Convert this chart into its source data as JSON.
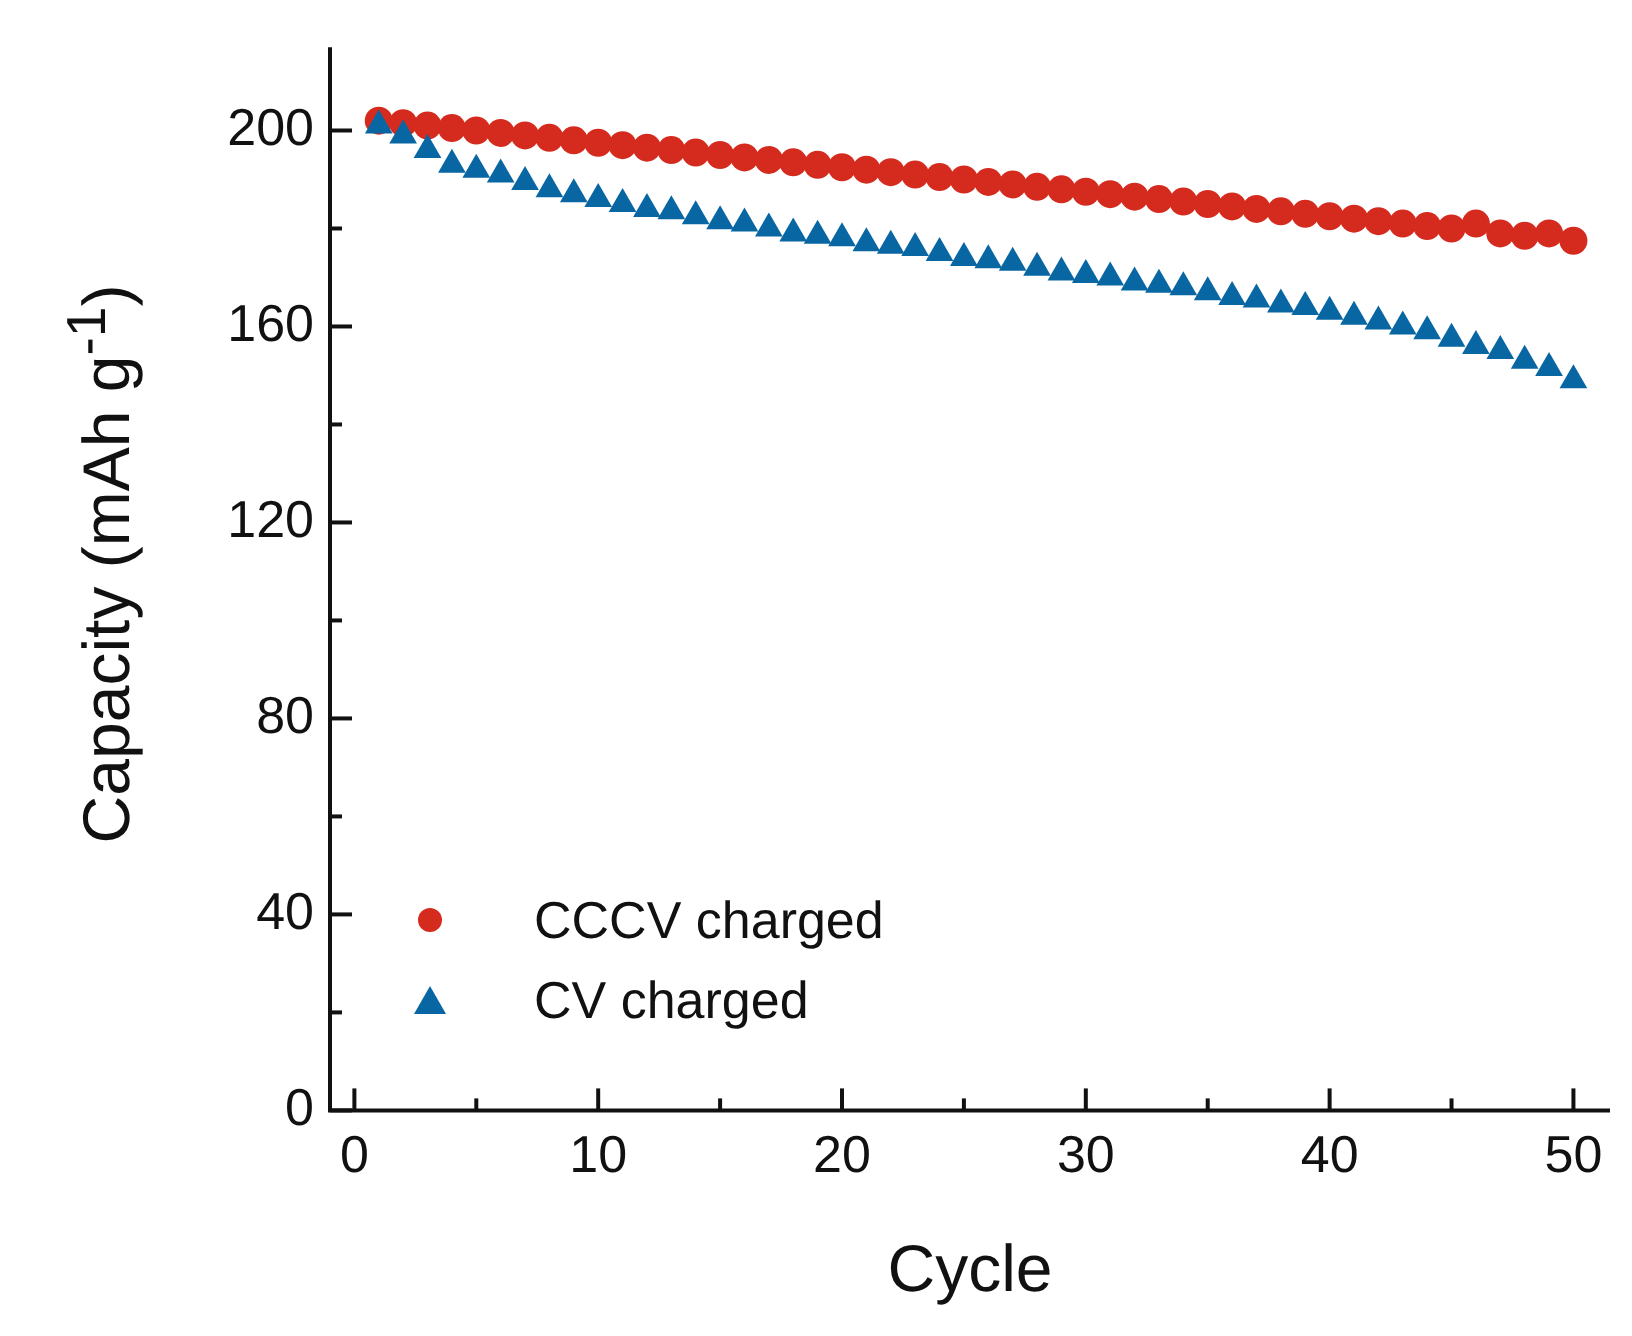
{
  "chart_data": {
    "type": "scatter",
    "xlabel": "Cycle",
    "ylabel": "Capacity (mAh g$^{-1}$)",
    "x": [
      1,
      2,
      3,
      4,
      5,
      6,
      7,
      8,
      9,
      10,
      11,
      12,
      13,
      14,
      15,
      16,
      17,
      18,
      19,
      20,
      21,
      22,
      23,
      24,
      25,
      26,
      27,
      28,
      29,
      30,
      31,
      32,
      33,
      34,
      35,
      36,
      37,
      38,
      39,
      40,
      41,
      42,
      43,
      44,
      45,
      46,
      47,
      48,
      49,
      50
    ],
    "series": [
      {
        "name": "CCCV charged",
        "color": "#d52b1e",
        "marker": "circle",
        "values": [
          202,
          201.5,
          201,
          200.5,
          200,
          199.5,
          199,
          198.5,
          198,
          197.5,
          197,
          196.5,
          196,
          195.5,
          195,
          194.5,
          194,
          193.5,
          193,
          192.5,
          192,
          191.5,
          191,
          190.5,
          190,
          189.5,
          189,
          188.5,
          188,
          187.5,
          187,
          186.5,
          186,
          185.5,
          185,
          184.5,
          184,
          183.5,
          183,
          182.5,
          182,
          181.5,
          181,
          180.5,
          180,
          181,
          179,
          178.5,
          179,
          177.5
        ]
      },
      {
        "name": "CV charged",
        "color": "#0866a3",
        "marker": "triangle",
        "values": [
          201,
          199,
          196,
          193,
          192,
          191,
          189.5,
          188,
          187,
          186,
          185,
          184,
          183.5,
          182.5,
          181.5,
          181,
          180,
          179,
          178.5,
          178,
          177,
          176.5,
          176,
          175,
          174,
          173.5,
          173,
          172,
          171,
          170.5,
          170,
          169,
          168.5,
          168,
          167,
          166,
          165.5,
          164.5,
          164,
          163,
          162,
          161,
          160,
          159,
          157.5,
          156,
          155,
          153,
          151.5,
          149
        ]
      }
    ],
    "xlim": [
      -1,
      51.5
    ],
    "ylim": [
      0,
      217
    ],
    "xticks": [
      0,
      {
        "value": 5,
        "label": null
      },
      10,
      {
        "value": 15,
        "label": null
      },
      20,
      {
        "value": 25,
        "label": null
      },
      30,
      {
        "value": 35,
        "label": null
      },
      40,
      {
        "value": 45,
        "label": null
      },
      50
    ],
    "yticks": [
      0,
      {
        "value": 20,
        "label": null
      },
      40,
      {
        "value": 60,
        "label": null
      },
      80,
      {
        "value": 100,
        "label": null
      },
      120,
      {
        "value": 140,
        "label": null
      },
      160,
      {
        "value": 180,
        "label": null
      },
      200
    ],
    "grid": false,
    "legend": "bottom left"
  }
}
